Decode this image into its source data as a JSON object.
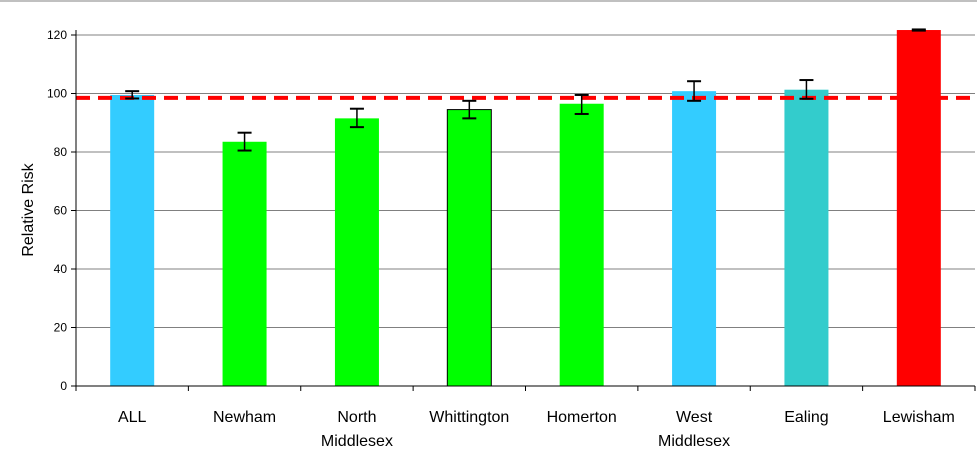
{
  "chart_data": {
    "type": "bar",
    "title": "",
    "xlabel": "",
    "ylabel": "Relative Risk",
    "ylim": [
      0,
      120
    ],
    "yticks": [
      0,
      20,
      40,
      60,
      80,
      100,
      120
    ],
    "grid": true,
    "categories": [
      {
        "lines": [
          "ALL"
        ],
        "value": 99.5,
        "err_low": 98.3,
        "err_high": 100.8,
        "color": "#33ccff"
      },
      {
        "lines": [
          "Newham"
        ],
        "value": 83.5,
        "err_low": 80.5,
        "err_high": 86.6,
        "color": "#00ff00"
      },
      {
        "lines": [
          "North",
          "Middlesex"
        ],
        "value": 91.5,
        "err_low": 88.5,
        "err_high": 94.8,
        "color": "#00ff00"
      },
      {
        "lines": [
          "Whittington"
        ],
        "value": 94.5,
        "err_low": 91.5,
        "err_high": 97.5,
        "color": "#00ff00"
      },
      {
        "lines": [
          "Homerton"
        ],
        "value": 96.5,
        "err_low": 93.0,
        "err_high": 99.5,
        "color": "#00ff00"
      },
      {
        "lines": [
          "West",
          "Middlesex"
        ],
        "value": 100.8,
        "err_low": 97.5,
        "err_high": 104.2,
        "color": "#33ccff"
      },
      {
        "lines": [
          "Ealing"
        ],
        "value": 101.3,
        "err_low": 98.2,
        "err_high": 104.6,
        "color": "#33cccc"
      },
      {
        "lines": [
          "Lewisham"
        ],
        "value": 121.7,
        "err_low": 121.5,
        "err_high": 121.9,
        "color": "#ff0000"
      }
    ],
    "reference_line": {
      "value": 98.5,
      "color": "#ff0000",
      "style": "dashed"
    }
  }
}
